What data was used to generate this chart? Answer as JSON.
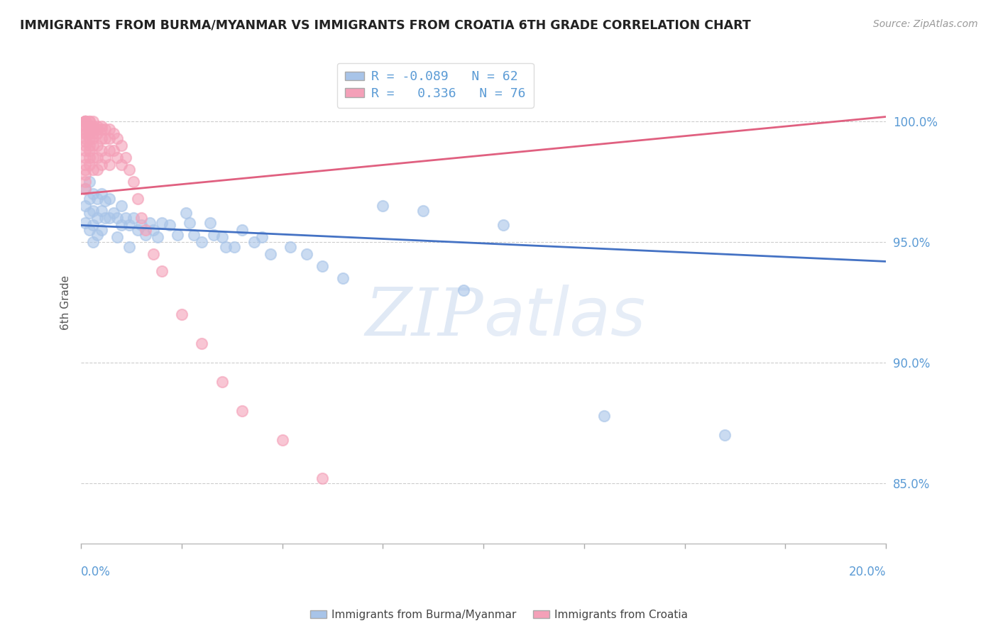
{
  "title": "IMMIGRANTS FROM BURMA/MYANMAR VS IMMIGRANTS FROM CROATIA 6TH GRADE CORRELATION CHART",
  "source": "Source: ZipAtlas.com",
  "ylabel": "6th Grade",
  "yticks": [
    0.85,
    0.9,
    0.95,
    1.0
  ],
  "ytick_labels": [
    "85.0%",
    "90.0%",
    "95.0%",
    "100.0%"
  ],
  "xlim": [
    0.0,
    0.2
  ],
  "ylim": [
    0.825,
    1.025
  ],
  "blue_color": "#A8C4E8",
  "pink_color": "#F4A0B8",
  "trend_blue": "#4472C4",
  "trend_pink": "#E06080",
  "blue_trend_x0": 0.0,
  "blue_trend_y0": 0.957,
  "blue_trend_x1": 0.2,
  "blue_trend_y1": 0.942,
  "pink_trend_x0": 0.0,
  "pink_trend_y0": 0.97,
  "pink_trend_x1": 0.2,
  "pink_trend_y1": 1.002,
  "blue_scatter_x": [
    0.001,
    0.001,
    0.001,
    0.002,
    0.002,
    0.002,
    0.002,
    0.003,
    0.003,
    0.003,
    0.003,
    0.004,
    0.004,
    0.004,
    0.005,
    0.005,
    0.005,
    0.006,
    0.006,
    0.007,
    0.007,
    0.008,
    0.009,
    0.009,
    0.01,
    0.01,
    0.011,
    0.012,
    0.012,
    0.013,
    0.014,
    0.015,
    0.016,
    0.017,
    0.018,
    0.019,
    0.02,
    0.022,
    0.024,
    0.026,
    0.027,
    0.028,
    0.03,
    0.032,
    0.033,
    0.035,
    0.036,
    0.038,
    0.04,
    0.043,
    0.045,
    0.047,
    0.052,
    0.056,
    0.06,
    0.065,
    0.075,
    0.085,
    0.095,
    0.105,
    0.13,
    0.16
  ],
  "blue_scatter_y": [
    0.972,
    0.965,
    0.958,
    0.975,
    0.968,
    0.962,
    0.955,
    0.97,
    0.963,
    0.957,
    0.95,
    0.968,
    0.96,
    0.953,
    0.97,
    0.963,
    0.955,
    0.967,
    0.96,
    0.968,
    0.96,
    0.962,
    0.96,
    0.952,
    0.965,
    0.957,
    0.96,
    0.957,
    0.948,
    0.96,
    0.955,
    0.957,
    0.953,
    0.958,
    0.955,
    0.952,
    0.958,
    0.957,
    0.953,
    0.962,
    0.958,
    0.953,
    0.95,
    0.958,
    0.953,
    0.952,
    0.948,
    0.948,
    0.955,
    0.95,
    0.952,
    0.945,
    0.948,
    0.945,
    0.94,
    0.935,
    0.965,
    0.963,
    0.93,
    0.957,
    0.878,
    0.87
  ],
  "pink_scatter_x": [
    0.001,
    0.001,
    0.001,
    0.001,
    0.001,
    0.001,
    0.001,
    0.001,
    0.001,
    0.001,
    0.001,
    0.001,
    0.001,
    0.001,
    0.001,
    0.001,
    0.001,
    0.001,
    0.001,
    0.001,
    0.002,
    0.002,
    0.002,
    0.002,
    0.002,
    0.002,
    0.002,
    0.002,
    0.002,
    0.002,
    0.003,
    0.003,
    0.003,
    0.003,
    0.003,
    0.003,
    0.003,
    0.003,
    0.004,
    0.004,
    0.004,
    0.004,
    0.004,
    0.004,
    0.005,
    0.005,
    0.005,
    0.005,
    0.005,
    0.006,
    0.006,
    0.006,
    0.007,
    0.007,
    0.007,
    0.007,
    0.008,
    0.008,
    0.009,
    0.009,
    0.01,
    0.01,
    0.011,
    0.012,
    0.013,
    0.014,
    0.015,
    0.016,
    0.018,
    0.02,
    0.025,
    0.03,
    0.035,
    0.04,
    0.05,
    0.06
  ],
  "pink_scatter_y": [
    1.0,
    1.0,
    1.0,
    1.0,
    1.0,
    1.0,
    0.998,
    0.997,
    0.996,
    0.995,
    0.993,
    0.992,
    0.99,
    0.988,
    0.985,
    0.982,
    0.98,
    0.978,
    0.975,
    0.972,
    1.0,
    1.0,
    0.998,
    0.997,
    0.995,
    0.993,
    0.99,
    0.988,
    0.985,
    0.982,
    1.0,
    0.998,
    0.997,
    0.995,
    0.993,
    0.99,
    0.985,
    0.98,
    0.998,
    0.997,
    0.995,
    0.99,
    0.985,
    0.98,
    0.998,
    0.997,
    0.993,
    0.988,
    0.982,
    0.997,
    0.993,
    0.985,
    0.997,
    0.993,
    0.988,
    0.982,
    0.995,
    0.988,
    0.993,
    0.985,
    0.99,
    0.982,
    0.985,
    0.98,
    0.975,
    0.968,
    0.96,
    0.955,
    0.945,
    0.938,
    0.92,
    0.908,
    0.892,
    0.88,
    0.868,
    0.852
  ]
}
